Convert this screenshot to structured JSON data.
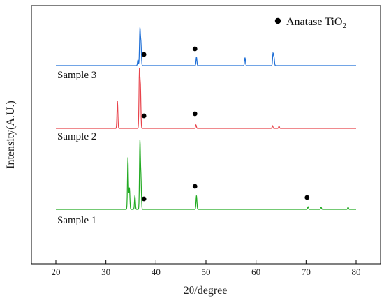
{
  "chart_data": {
    "type": "line",
    "title": "",
    "xlabel": "2θ/degree",
    "ylabel": "Intensity(A.U.)",
    "xlim": [
      20,
      80
    ],
    "xticks": [
      20,
      30,
      40,
      50,
      60,
      70,
      80
    ],
    "yticks": [],
    "grid": false,
    "legend": {
      "marker": "filled-circle",
      "text": "Anatase TiO",
      "text_subscript": "2",
      "placement": "top-right"
    },
    "series": [
      {
        "name": "Sample 3",
        "color": "#1f6fd6",
        "peaks": [
          {
            "x": 36.4,
            "h": 0.16
          },
          {
            "x": 36.8,
            "h": 1.0
          },
          {
            "x": 37.0,
            "h": 0.6
          },
          {
            "x": 48.1,
            "h": 0.24
          },
          {
            "x": 57.8,
            "h": 0.22
          },
          {
            "x": 63.4,
            "h": 0.33
          },
          {
            "x": 63.6,
            "h": 0.22
          }
        ],
        "anatase_markers": [
          37.6,
          47.8
        ]
      },
      {
        "name": "Sample 2",
        "color": "#e8434b",
        "peaks": [
          {
            "x": 32.3,
            "h": 0.62
          },
          {
            "x": 36.7,
            "h": 1.3
          },
          {
            "x": 36.9,
            "h": 0.9
          },
          {
            "x": 48.0,
            "h": 0.08
          },
          {
            "x": 63.3,
            "h": 0.06
          },
          {
            "x": 64.6,
            "h": 0.05
          }
        ],
        "anatase_markers": [
          37.6,
          47.8
        ]
      },
      {
        "name": "Sample 1",
        "color": "#22aa22",
        "peaks": [
          {
            "x": 34.4,
            "h": 1.2
          },
          {
            "x": 34.7,
            "h": 0.5
          },
          {
            "x": 35.8,
            "h": 0.32
          },
          {
            "x": 36.8,
            "h": 1.55
          },
          {
            "x": 37.0,
            "h": 0.7
          },
          {
            "x": 48.1,
            "h": 0.32
          },
          {
            "x": 70.4,
            "h": 0.06
          },
          {
            "x": 73.0,
            "h": 0.05
          },
          {
            "x": 78.4,
            "h": 0.05
          }
        ],
        "anatase_markers": [
          37.6,
          47.8,
          70.2
        ]
      }
    ]
  }
}
